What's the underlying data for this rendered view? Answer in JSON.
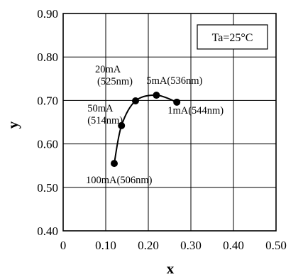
{
  "chart_data": {
    "type": "scatter",
    "title": "",
    "xlabel": "x",
    "ylabel": "y",
    "xlim": [
      0,
      0.5
    ],
    "ylim": [
      0.4,
      0.9
    ],
    "x_ticks": [
      "0",
      "0.10",
      "0.20",
      "0.30",
      "0.40",
      "0.50"
    ],
    "y_ticks": [
      "0.40",
      "0.50",
      "0.60",
      "0.70",
      "0.80",
      "0.90"
    ],
    "grid": true,
    "condition_label": "Ta=25°C",
    "series": [
      {
        "points": [
          {
            "x": 0.12,
            "y": 0.555,
            "label": "100mA(506nm)"
          },
          {
            "x": 0.137,
            "y": 0.642,
            "label": "50mA(514nm)"
          },
          {
            "x": 0.17,
            "y": 0.699,
            "label": "20mA(525nm)"
          },
          {
            "x": 0.219,
            "y": 0.712,
            "label": "5mA(536nm)"
          },
          {
            "x": 0.267,
            "y": 0.696,
            "label": "1mA(544nm)"
          }
        ]
      }
    ]
  }
}
